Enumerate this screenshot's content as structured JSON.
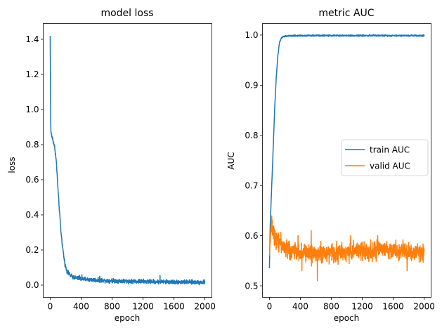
{
  "chart_data": [
    {
      "type": "line",
      "title": "model loss",
      "xlabel": "epoch",
      "ylabel": "loss",
      "xlim": [
        -90,
        2090
      ],
      "ylim": [
        -0.07,
        1.49
      ],
      "xticks": [
        0,
        400,
        800,
        1200,
        1600,
        2000
      ],
      "yticks": [
        0.0,
        0.2,
        0.4,
        0.6,
        0.8,
        1.0,
        1.2,
        1.4
      ],
      "grid": false,
      "legend": null,
      "series": [
        {
          "color": "#1f77b4",
          "keypoints": [
            [
              0,
              1.42
            ],
            [
              3,
              1.2
            ],
            [
              6,
              0.95
            ],
            [
              10,
              0.87
            ],
            [
              20,
              0.85
            ],
            [
              40,
              0.82
            ],
            [
              60,
              0.78
            ],
            [
              80,
              0.7
            ],
            [
              100,
              0.55
            ],
            [
              120,
              0.42
            ],
            [
              140,
              0.3
            ],
            [
              160,
              0.22
            ],
            [
              180,
              0.15
            ],
            [
              200,
              0.1
            ],
            [
              230,
              0.07
            ],
            [
              260,
              0.055
            ],
            [
              300,
              0.045
            ],
            [
              400,
              0.035
            ],
            [
              600,
              0.028
            ],
            [
              1000,
              0.022
            ],
            [
              1500,
              0.018
            ],
            [
              2000,
              0.016
            ]
          ],
          "noise": 0.012,
          "spikes": [
            [
              380,
              0.055
            ],
            [
              410,
              0.06
            ],
            [
              640,
              0.05
            ],
            [
              1420,
              0.055
            ]
          ]
        }
      ]
    },
    {
      "type": "line",
      "title": "metric AUC",
      "xlabel": "epoch",
      "ylabel": "AUC",
      "xlim": [
        -90,
        2090
      ],
      "ylim": [
        0.477,
        1.023
      ],
      "xticks": [
        0,
        400,
        800,
        1200,
        1600,
        2000
      ],
      "yticks": [
        0.5,
        0.6,
        0.7,
        0.8,
        0.9,
        1.0
      ],
      "grid": false,
      "legend": "center-right",
      "series": [
        {
          "name": "train AUC",
          "color": "#1f77b4",
          "keypoints": [
            [
              0,
              0.535
            ],
            [
              10,
              0.62
            ],
            [
              30,
              0.7
            ],
            [
              50,
              0.78
            ],
            [
              70,
              0.86
            ],
            [
              90,
              0.92
            ],
            [
              110,
              0.96
            ],
            [
              130,
              0.985
            ],
            [
              150,
              0.993
            ],
            [
              180,
              0.997
            ],
            [
              220,
              0.998
            ],
            [
              400,
              0.999
            ],
            [
              2000,
              0.999
            ]
          ],
          "noise": 0.0015
        },
        {
          "name": "valid AUC",
          "color": "#ff7f0e",
          "keypoints": [
            [
              0,
              0.56
            ],
            [
              20,
              0.62
            ],
            [
              40,
              0.615
            ],
            [
              60,
              0.6
            ],
            [
              100,
              0.595
            ],
            [
              150,
              0.585
            ],
            [
              200,
              0.575
            ],
            [
              300,
              0.57
            ],
            [
              500,
              0.565
            ],
            [
              800,
              0.565
            ],
            [
              1200,
              0.57
            ],
            [
              1600,
              0.57
            ],
            [
              2000,
              0.565
            ]
          ],
          "noise": 0.018,
          "spikes": [
            [
              370,
              0.6
            ],
            [
              420,
              0.53
            ],
            [
              540,
              0.61
            ],
            [
              620,
              0.51
            ],
            [
              1050,
              0.6
            ],
            [
              1400,
              0.6
            ],
            [
              1780,
              0.53
            ]
          ]
        }
      ]
    }
  ]
}
